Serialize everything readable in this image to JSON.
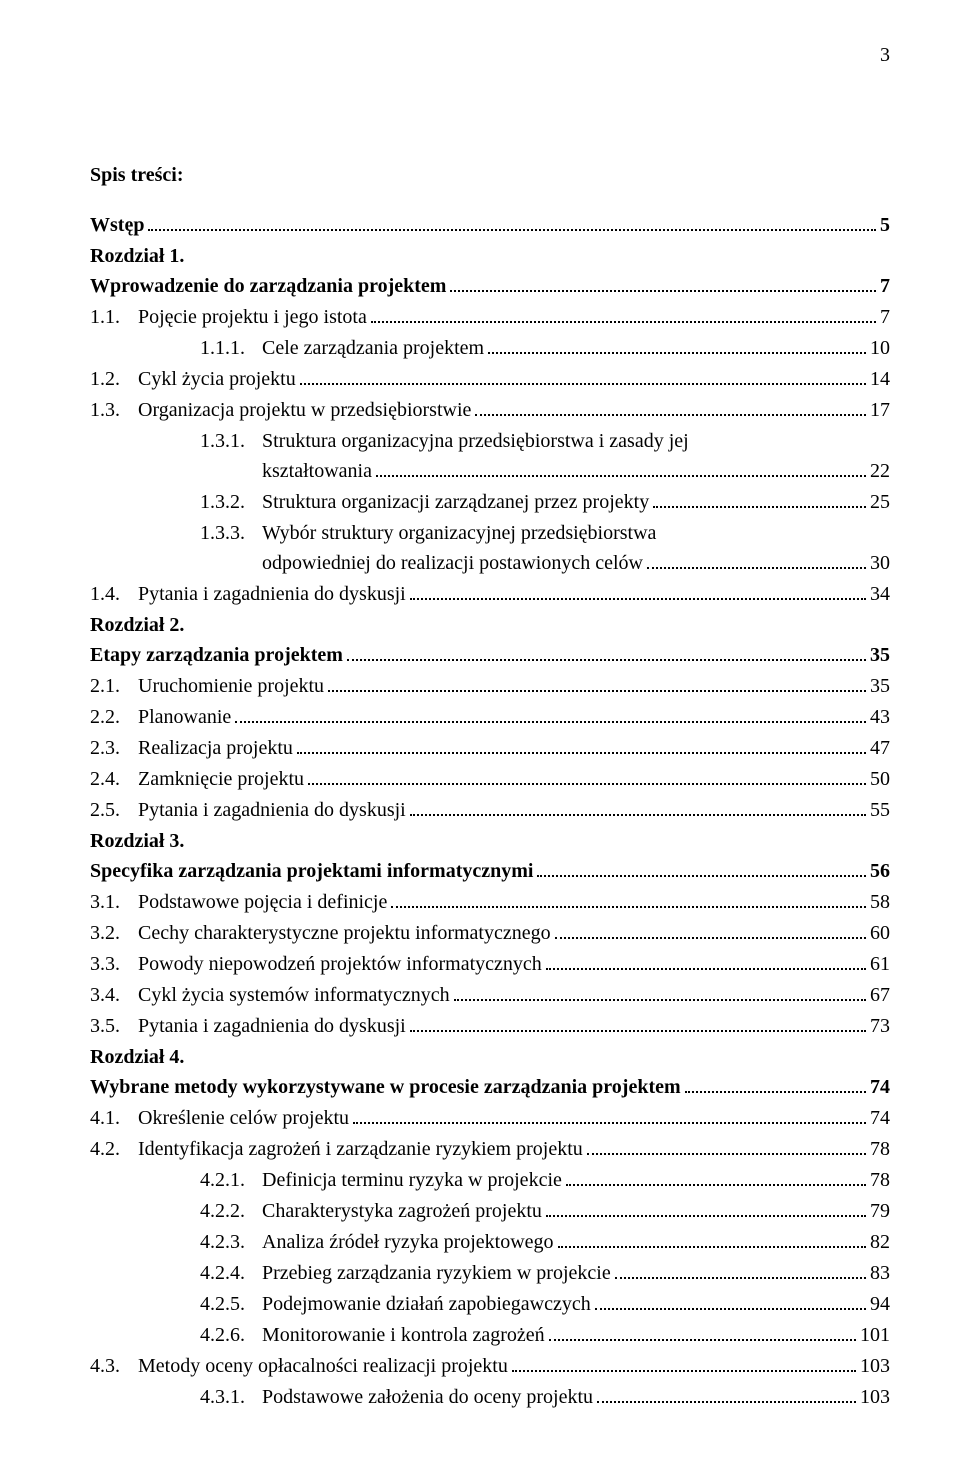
{
  "page_number": "3",
  "heading": "Spis treści:",
  "entries": [
    {
      "kind": "line",
      "bold": true,
      "indent": 0,
      "label": "Wstęp",
      "page": "5"
    },
    {
      "kind": "group-head",
      "bold": true,
      "indent": 0,
      "label": "Rozdział 1."
    },
    {
      "kind": "line",
      "bold": true,
      "indent": 0,
      "label": "Wprowadzenie do zarządzania projektem",
      "page": "7"
    },
    {
      "kind": "line",
      "indent": 1,
      "num": "1.1.",
      "label": "Pojęcie projektu i jego istota",
      "page": "7"
    },
    {
      "kind": "line",
      "indent": 2,
      "num": "1.1.1.",
      "label": "Cele zarządzania projektem",
      "page": "10"
    },
    {
      "kind": "line",
      "indent": 1,
      "num": "1.2.",
      "label": "Cykl życia projektu",
      "page": "14"
    },
    {
      "kind": "line",
      "indent": 1,
      "num": "1.3.",
      "label": "Organizacja projektu w przedsiębiorstwie",
      "page": "17"
    },
    {
      "kind": "wrap",
      "indent": 2,
      "num": "1.3.1.",
      "label_lines": [
        "Struktura organizacyjna przedsiębiorstwa i zasady jej",
        "kształtowania"
      ],
      "page": "22"
    },
    {
      "kind": "line",
      "indent": 2,
      "num": "1.3.2.",
      "label": "Struktura organizacji zarządzanej przez projekty",
      "page": "25"
    },
    {
      "kind": "wrap",
      "indent": 2,
      "num": "1.3.3.",
      "label_lines": [
        "Wybór struktury organizacyjnej przedsiębiorstwa",
        "odpowiedniej do realizacji postawionych celów"
      ],
      "page": "30"
    },
    {
      "kind": "line",
      "indent": 1,
      "num": "1.4.",
      "label": "Pytania i zagadnienia do dyskusji",
      "page": "34"
    },
    {
      "kind": "group-head",
      "bold": true,
      "indent": 0,
      "label": "Rozdział 2."
    },
    {
      "kind": "line",
      "bold": true,
      "indent": 0,
      "label": "Etapy zarządzania projektem",
      "page": "35"
    },
    {
      "kind": "line",
      "indent": 1,
      "num": "2.1.",
      "label": "Uruchomienie projektu",
      "page": "35"
    },
    {
      "kind": "line",
      "indent": 1,
      "num": "2.2.",
      "label": "Planowanie",
      "page": "43"
    },
    {
      "kind": "line",
      "indent": 1,
      "num": "2.3.",
      "label": "Realizacja projektu",
      "page": "47"
    },
    {
      "kind": "line",
      "indent": 1,
      "num": "2.4.",
      "label": "Zamknięcie projektu",
      "page": "50"
    },
    {
      "kind": "line",
      "indent": 1,
      "num": "2.5.",
      "label": "Pytania i zagadnienia do dyskusji",
      "page": "55"
    },
    {
      "kind": "group-head",
      "bold": true,
      "indent": 0,
      "label": "Rozdział 3."
    },
    {
      "kind": "line",
      "bold": true,
      "indent": 0,
      "label": "Specyfika zarządzania projektami informatycznymi",
      "page": "56"
    },
    {
      "kind": "line",
      "indent": 1,
      "num": "3.1.",
      "label": "Podstawowe pojęcia i definicje",
      "page": "58"
    },
    {
      "kind": "line",
      "indent": 1,
      "num": "3.2.",
      "label": "Cechy charakterystyczne projektu informatycznego",
      "page": "60"
    },
    {
      "kind": "line",
      "indent": 1,
      "num": "3.3.",
      "label": "Powody niepowodzeń projektów informatycznych",
      "page": "61"
    },
    {
      "kind": "line",
      "indent": 1,
      "num": "3.4.",
      "label": "Cykl życia systemów informatycznych",
      "page": "67"
    },
    {
      "kind": "line",
      "indent": 1,
      "num": "3.5.",
      "label": "Pytania i zagadnienia do dyskusji",
      "page": "73"
    },
    {
      "kind": "group-head",
      "bold": true,
      "indent": 0,
      "label": "Rozdział 4."
    },
    {
      "kind": "line",
      "bold": true,
      "indent": 0,
      "label": "Wybrane metody wykorzystywane w procesie zarządzania projektem",
      "page": "74"
    },
    {
      "kind": "line",
      "indent": 1,
      "num": "4.1.",
      "label": "Określenie celów projektu",
      "page": "74"
    },
    {
      "kind": "line",
      "indent": 1,
      "num": "4.2.",
      "label": "Identyfikacja zagrożeń i zarządzanie ryzykiem projektu",
      "page": "78"
    },
    {
      "kind": "line",
      "indent": 2,
      "num": "4.2.1.",
      "label": "Definicja terminu ryzyka w projekcie",
      "page": "78"
    },
    {
      "kind": "line",
      "indent": 2,
      "num": "4.2.2.",
      "label": "Charakterystyka zagrożeń projektu",
      "page": "79"
    },
    {
      "kind": "line",
      "indent": 2,
      "num": "4.2.3.",
      "label": "Analiza źródeł ryzyka projektowego",
      "page": "82"
    },
    {
      "kind": "line",
      "indent": 2,
      "num": "4.2.4.",
      "label": "Przebieg zarządzania ryzykiem w projekcie",
      "page": "83"
    },
    {
      "kind": "line",
      "indent": 2,
      "num": "4.2.5.",
      "label": "Podejmowanie działań zapobiegawczych",
      "page": "94"
    },
    {
      "kind": "line",
      "indent": 2,
      "num": "4.2.6.",
      "label": "Monitorowanie i kontrola zagrożeń",
      "page": "101"
    },
    {
      "kind": "line",
      "indent": 1,
      "num": "4.3.",
      "label": "Metody oceny opłacalności realizacji projektu",
      "page": "103"
    },
    {
      "kind": "line",
      "indent": 2,
      "num": "4.3.1.",
      "label": "Podstawowe założenia do oceny projektu",
      "page": "103"
    }
  ]
}
